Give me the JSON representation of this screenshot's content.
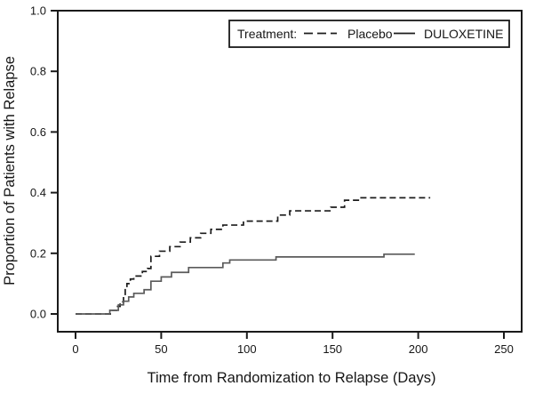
{
  "chart_data": {
    "type": "line",
    "variant": "kaplan_meier_step",
    "title": "",
    "xlabel": "Time from Randomization to Relapse (Days)",
    "ylabel": "Proportion of Patients with Relapse",
    "xlim": [
      0,
      250
    ],
    "ylim": [
      0.0,
      1.0
    ],
    "x_ticks": [
      0,
      50,
      100,
      150,
      200,
      250
    ],
    "y_tick_labels": [
      "0.0",
      "0.2",
      "0.4",
      "0.6",
      "0.8",
      "1.0"
    ],
    "grid": false,
    "axis_color": "#1a1a1a",
    "legend": {
      "title": "Treatment:",
      "position": "top-right",
      "entries": [
        {
          "label": "Placebo",
          "line_style": "dashed"
        },
        {
          "label": "DULOXETINE",
          "line_style": "solid"
        }
      ]
    },
    "series": [
      {
        "name": "Placebo",
        "line_style": "dashed",
        "color": "#1c1c1c",
        "points_day_proportion": [
          [
            0,
            0
          ],
          [
            21,
            0.012
          ],
          [
            24,
            0.025
          ],
          [
            26,
            0.04
          ],
          [
            28,
            0.06
          ],
          [
            29,
            0.08
          ],
          [
            30,
            0.1
          ],
          [
            32,
            0.115
          ],
          [
            34,
            0.125
          ],
          [
            39,
            0.14
          ],
          [
            42,
            0.15
          ],
          [
            44,
            0.19
          ],
          [
            49,
            0.207
          ],
          [
            55,
            0.222
          ],
          [
            61,
            0.237
          ],
          [
            67,
            0.251
          ],
          [
            73,
            0.266
          ],
          [
            79,
            0.279
          ],
          [
            86,
            0.293
          ],
          [
            98,
            0.306
          ],
          [
            118,
            0.326
          ],
          [
            125,
            0.34
          ],
          [
            149,
            0.352
          ],
          [
            157,
            0.375
          ],
          [
            166,
            0.383
          ],
          [
            207,
            0.383
          ]
        ]
      },
      {
        "name": "DULOXETINE",
        "line_style": "solid",
        "color": "#5a5a5a",
        "points_day_proportion": [
          [
            0,
            0
          ],
          [
            20,
            0.012
          ],
          [
            25,
            0.03
          ],
          [
            28,
            0.042
          ],
          [
            31,
            0.056
          ],
          [
            34,
            0.068
          ],
          [
            40,
            0.08
          ],
          [
            44,
            0.108
          ],
          [
            50,
            0.122
          ],
          [
            56,
            0.137
          ],
          [
            66,
            0.153
          ],
          [
            86,
            0.168
          ],
          [
            90,
            0.178
          ],
          [
            117,
            0.188
          ],
          [
            180,
            0.197
          ],
          [
            198,
            0.197
          ]
        ]
      }
    ]
  }
}
